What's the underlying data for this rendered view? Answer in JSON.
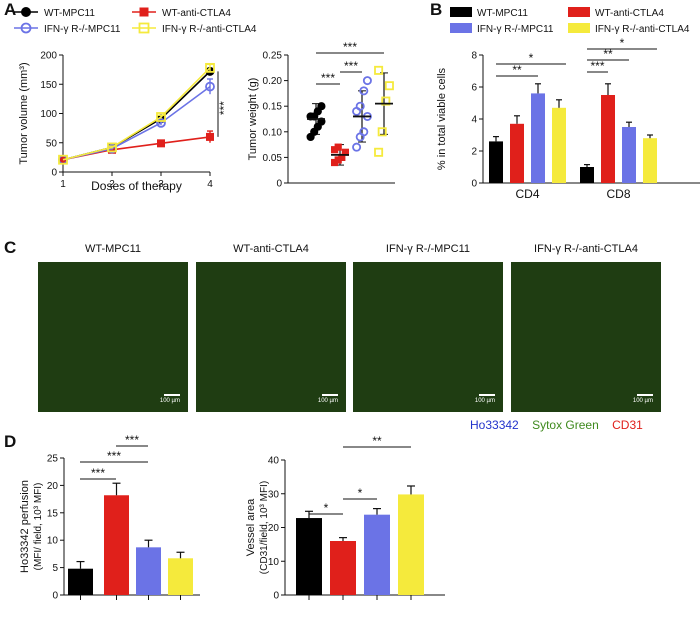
{
  "panels": {
    "A": "A",
    "B": "B",
    "C": "C",
    "D": "D"
  },
  "colors": {
    "wt_mpc11": "#000000",
    "wt_ctla4": "#e0201b",
    "ifn_mpc11": "#6b73e6",
    "ifn_ctla4": "#f5ea3c"
  },
  "legend": {
    "a": [
      "WT-MPC11",
      "WT-anti-CTLA4",
      "IFN-γ R-/-MPC11",
      "IFN-γ R-/-anti-CTLA4"
    ],
    "b": [
      "WT-MPC11",
      "WT-anti-CTLA4",
      "IFN-γ R-/-MPC11",
      "IFN-γ R-/-anti-CTLA4"
    ]
  },
  "microscopy": {
    "titles": [
      "WT-MPC11",
      "WT-anti-CTLA4",
      "IFN-γ R-/-MPC11",
      "IFN-γ R-/-anti-CTLA4"
    ],
    "scale_text": "100 µm",
    "stains": [
      "Ho33342",
      "Sytox Green",
      "CD31"
    ]
  },
  "chart_data": [
    {
      "type": "line",
      "id": "tumor_volume",
      "x": [
        1,
        2,
        3,
        4
      ],
      "xlabel": "Doses of therapy",
      "ylabel": "Tumor volume (mm³)",
      "xlim": [
        1,
        4
      ],
      "ylim": [
        0,
        200
      ],
      "xticks": [
        "1",
        "2",
        "3",
        "4"
      ],
      "yticks": [
        "0",
        "50",
        "100",
        "150",
        "200"
      ],
      "series": [
        {
          "name": "WT-MPC11",
          "values": [
            21,
            42,
            91,
            172
          ],
          "err": [
            0,
            2,
            3,
            5
          ]
        },
        {
          "name": "WT-anti-CTLA4",
          "values": [
            21,
            38,
            49,
            60
          ],
          "err": [
            0,
            2,
            3,
            10
          ]
        },
        {
          "name": "IFN-γ R-/-MPC11",
          "values": [
            21,
            40,
            84,
            146
          ],
          "err": [
            0,
            2,
            4,
            13
          ]
        },
        {
          "name": "IFN-γ R-/-anti-CTLA4",
          "values": [
            21,
            42,
            94,
            178
          ],
          "err": [
            0,
            2,
            3,
            6
          ]
        }
      ],
      "annotation": "***"
    },
    {
      "type": "scatter",
      "id": "tumor_weight",
      "ylabel": "Tumor weight (g)",
      "ylim": [
        0,
        0.25
      ],
      "yticks": [
        "0",
        "0.05",
        "0.10",
        "0.15",
        "0.20",
        "0.25"
      ],
      "series": [
        {
          "name": "WT-MPC11",
          "points": [
            0.09,
            0.1,
            0.11,
            0.12,
            0.13,
            0.13,
            0.14,
            0.15
          ],
          "mean": 0.125,
          "sd": 0.03
        },
        {
          "name": "WT-anti-CTLA4",
          "points": [
            0.04,
            0.045,
            0.05,
            0.06,
            0.065,
            0.07
          ],
          "mean": 0.055,
          "sd": 0.02
        },
        {
          "name": "IFN-γ R-/-MPC11",
          "points": [
            0.07,
            0.09,
            0.1,
            0.13,
            0.14,
            0.15,
            0.18,
            0.2
          ],
          "mean": 0.13,
          "sd": 0.05
        },
        {
          "name": "IFN-γ R-/-anti-CTLA4",
          "points": [
            0.06,
            0.1,
            0.16,
            0.19,
            0.22
          ],
          "mean": 0.155,
          "sd": 0.06
        }
      ],
      "significance": [
        "***",
        "***",
        "***"
      ]
    },
    {
      "type": "bar",
      "id": "viable_cells",
      "categories": [
        "CD4",
        "CD8"
      ],
      "ylabel": "% in total viable cells",
      "ylim": [
        0,
        8
      ],
      "yticks": [
        "0",
        "2",
        "4",
        "6",
        "8"
      ],
      "series": [
        {
          "name": "WT-MPC11",
          "values": [
            2.6,
            1.0
          ],
          "err": [
            0.3,
            0.15
          ]
        },
        {
          "name": "WT-anti-CTLA4",
          "values": [
            3.7,
            5.5
          ],
          "err": [
            0.5,
            0.7
          ]
        },
        {
          "name": "IFN-γ R-/-MPC11",
          "values": [
            5.6,
            3.5
          ],
          "err": [
            0.6,
            0.3
          ]
        },
        {
          "name": "IFN-γ R-/-anti-CTLA4",
          "values": [
            4.7,
            2.8
          ],
          "err": [
            0.5,
            0.2
          ]
        }
      ],
      "significance": [
        "*",
        "**",
        "*",
        "**",
        "***"
      ]
    },
    {
      "type": "bar",
      "id": "perfusion",
      "categories": [
        "WT-MPC11",
        "WT-anti-CTLA4",
        "IFN-γ R-/-MPC11",
        "IFN-γ R-/-anti-CTLA4"
      ],
      "ylabel": "Ho33342 perfusion",
      "ylabel2": "(MFI/ field, 10³ MFI)",
      "ylim": [
        0,
        25
      ],
      "yticks": [
        "0",
        "5",
        "10",
        "15",
        "20",
        "25"
      ],
      "values": [
        4.8,
        18.2,
        8.7,
        6.7
      ],
      "err": [
        1.3,
        2.2,
        1.3,
        1.1
      ],
      "significance": [
        "***",
        "***",
        "***"
      ]
    },
    {
      "type": "bar",
      "id": "vessel_area",
      "categories": [
        "WT-MPC11",
        "WT-anti-CTLA4",
        "IFN-γ R-/-MPC11",
        "IFN-γ R-/-anti-CTLA4"
      ],
      "ylabel": "Vessel area",
      "ylabel2": "(CD31/field, 10³ MFI)",
      "ylim": [
        0,
        40
      ],
      "yticks": [
        "0",
        "10",
        "20",
        "30",
        "40"
      ],
      "values": [
        22.8,
        16.0,
        23.8,
        29.8
      ],
      "err": [
        2.0,
        1.0,
        1.8,
        2.5
      ],
      "significance": [
        "*",
        "*",
        "**"
      ]
    }
  ]
}
